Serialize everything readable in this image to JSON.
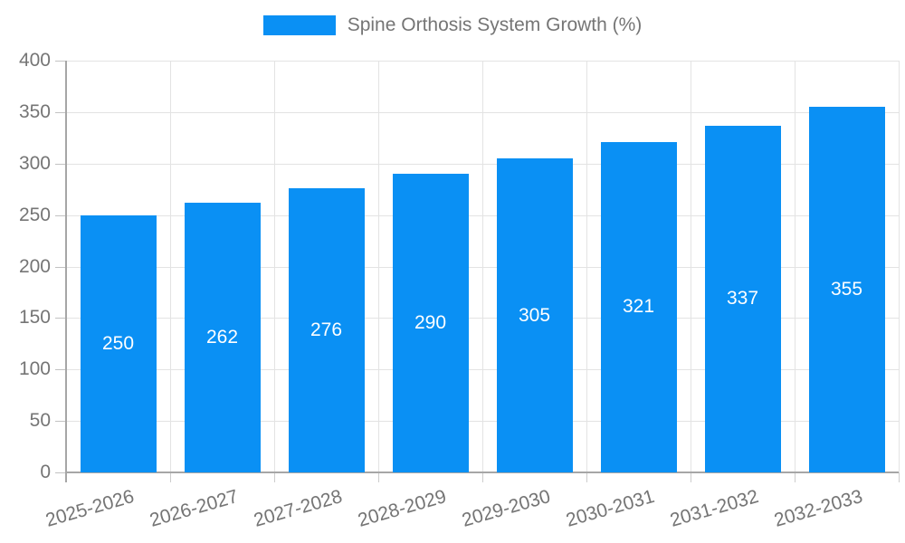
{
  "legend": {
    "label": "Spine Orthosis System Growth (%)"
  },
  "chart_data": {
    "type": "bar",
    "title": "Spine Orthosis System Growth (%)",
    "categories": [
      "2025-2026",
      "2026-2027",
      "2027-2028",
      "2028-2029",
      "2029-2030",
      "2030-2031",
      "2031-2032",
      "2032-2033"
    ],
    "values": [
      250,
      262,
      276,
      290,
      305,
      321,
      337,
      355
    ],
    "value_labels": [
      "250",
      "262",
      "276",
      "290",
      "305",
      "321",
      "337",
      "355"
    ],
    "ytick_labels": [
      "0",
      "50",
      "100",
      "150",
      "200",
      "250",
      "300",
      "350",
      "400"
    ],
    "ylim": [
      0,
      400
    ],
    "ytick_step": 50,
    "grid": true,
    "legend_position": "top",
    "xlabel": "",
    "ylabel": "",
    "colors": {
      "bar": "#0a90f4",
      "value_label": "#ffffff",
      "axis_text": "#757575",
      "gridline": "#e3e3e3",
      "axis_line": "#a6a6a6"
    }
  }
}
